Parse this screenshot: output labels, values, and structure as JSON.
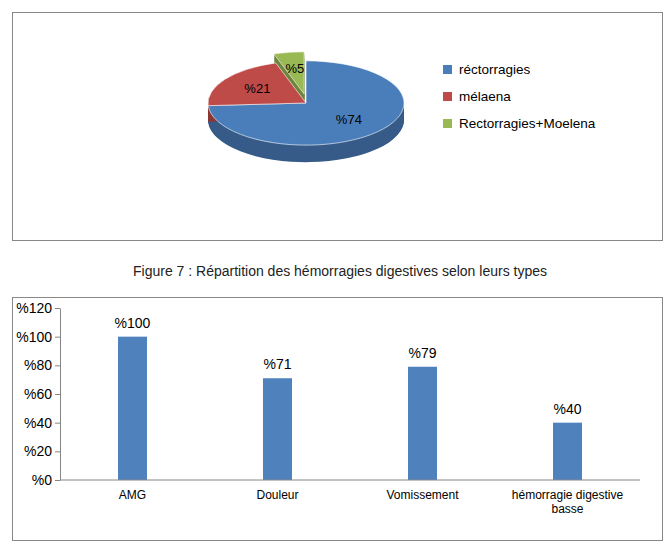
{
  "chart_data": [
    {
      "type": "pie",
      "title": "Figure 7 : Répartition des hémorragies digestives selon leurs types",
      "categories": [
        "réctorragies",
        "mélaena",
        "Rectorragies+Moelena"
      ],
      "values": [
        74,
        21,
        5
      ],
      "value_labels": [
        "%74",
        "%21",
        "%5"
      ],
      "colors": [
        "#4a7ebb",
        "#be4b48",
        "#98b954"
      ],
      "data_labels": true,
      "legend": "right"
    },
    {
      "type": "bar",
      "categories": [
        "AMG",
        "Douleur",
        "Vomissement",
        "hémorragie digestive basse"
      ],
      "values": [
        100,
        71,
        79,
        40
      ],
      "value_labels": [
        "%100",
        "%71",
        "%79",
        "%40"
      ],
      "color": "#4f81bd",
      "ylim": [
        0,
        120
      ],
      "yticks": [
        {
          "value": 0,
          "label": "%0"
        },
        {
          "value": 20,
          "label": "%20"
        },
        {
          "value": 40,
          "label": "%40"
        },
        {
          "value": 60,
          "label": "%60"
        },
        {
          "value": 80,
          "label": "%80"
        },
        {
          "value": 100,
          "label": "%100"
        },
        {
          "value": 120,
          "label": "%120"
        }
      ],
      "grid": false,
      "data_labels": true
    }
  ]
}
